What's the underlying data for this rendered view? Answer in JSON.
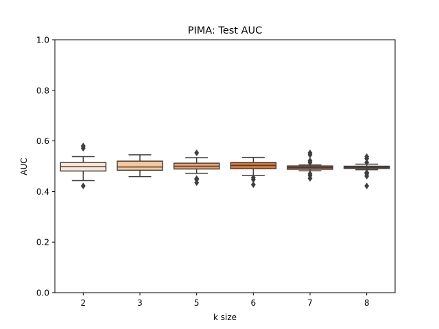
{
  "chart_data": {
    "type": "box",
    "title": "PIMA: Test AUC",
    "xlabel": "k size",
    "ylabel": "AUC",
    "ylim": [
      0.0,
      1.0
    ],
    "yticks": [
      0.0,
      0.2,
      0.4,
      0.6,
      0.8,
      1.0
    ],
    "ytick_labels": [
      "0.0",
      "0.2",
      "0.4",
      "0.6",
      "0.8",
      "1.0"
    ],
    "grid": false,
    "categories": [
      "2",
      "3",
      "5",
      "6",
      "7",
      "8"
    ],
    "boxes": [
      {
        "category": "2",
        "whisker_low": 0.443,
        "q1": 0.481,
        "median": 0.498,
        "q3": 0.515,
        "whisker_high": 0.538,
        "outliers": [
          0.422,
          0.571,
          0.58
        ],
        "color": "#fce6d5"
      },
      {
        "category": "3",
        "whisker_low": 0.459,
        "q1": 0.484,
        "median": 0.497,
        "q3": 0.52,
        "whisker_high": 0.545,
        "outliers": [],
        "color": "#f8c697"
      },
      {
        "category": "5",
        "whisker_low": 0.472,
        "q1": 0.489,
        "median": 0.5,
        "q3": 0.512,
        "whisker_high": 0.534,
        "outliers": [
          0.435,
          0.447,
          0.451,
          0.553
        ],
        "color": "#eea066"
      },
      {
        "category": "6",
        "whisker_low": 0.463,
        "q1": 0.49,
        "median": 0.503,
        "q3": 0.515,
        "whisker_high": 0.535,
        "outliers": [
          0.427,
          0.447,
          0.455
        ],
        "color": "#db7536"
      },
      {
        "category": "7",
        "whisker_low": 0.482,
        "q1": 0.488,
        "median": 0.495,
        "q3": 0.501,
        "whisker_high": 0.505,
        "outliers": [
          0.452,
          0.463,
          0.47,
          0.515,
          0.522,
          0.545,
          0.553
        ],
        "color": "#b95019"
      },
      {
        "category": "8",
        "whisker_low": 0.486,
        "q1": 0.491,
        "median": 0.496,
        "q3": 0.5,
        "whisker_high": 0.508,
        "outliers": [
          0.422,
          0.461,
          0.47,
          0.475,
          0.515,
          0.53,
          0.538
        ],
        "color": "#8e360c"
      }
    ]
  }
}
